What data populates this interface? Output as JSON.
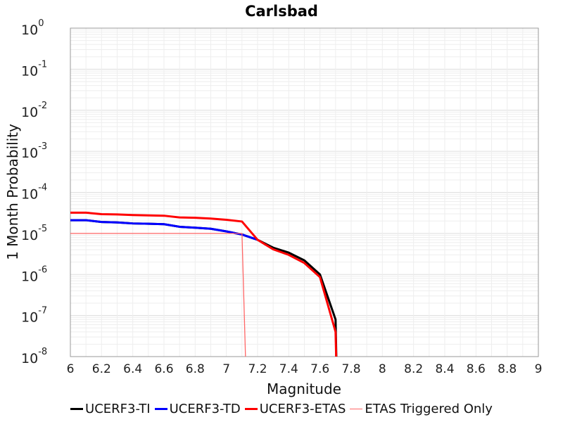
{
  "chart_data": {
    "type": "line",
    "title": "Carlsbad",
    "xlabel": "Magnitude",
    "ylabel": "1 Month Probability",
    "xlim": [
      6,
      9
    ],
    "ylim": [
      1e-08,
      1
    ],
    "yscale": "log",
    "grid": true,
    "legend_position": "bottom",
    "x_ticks": [
      "6",
      "6.2",
      "6.4",
      "6.6",
      "6.8",
      "7",
      "7.2",
      "7.4",
      "7.6",
      "7.8",
      "8",
      "8.2",
      "8.4",
      "8.6",
      "8.8",
      "9"
    ],
    "y_ticks": [
      {
        "base": "10",
        "exp": "0"
      },
      {
        "base": "10",
        "exp": "-1"
      },
      {
        "base": "10",
        "exp": "-2"
      },
      {
        "base": "10",
        "exp": "-3"
      },
      {
        "base": "10",
        "exp": "-4"
      },
      {
        "base": "10",
        "exp": "-5"
      },
      {
        "base": "10",
        "exp": "-6"
      },
      {
        "base": "10",
        "exp": "-7"
      },
      {
        "base": "10",
        "exp": "-8"
      }
    ],
    "series": [
      {
        "name": "UCERF3-TI",
        "color": "#000000",
        "width": 3,
        "x": [
          6.0,
          6.1,
          6.2,
          6.3,
          6.4,
          6.5,
          6.6,
          6.7,
          6.8,
          6.9,
          7.0,
          7.1,
          7.2,
          7.3,
          7.4,
          7.5,
          7.6,
          7.7,
          7.71
        ],
        "y": [
          2.1e-05,
          2.1e-05,
          1.9e-05,
          1.85e-05,
          1.75e-05,
          1.72e-05,
          1.68e-05,
          1.45e-05,
          1.38e-05,
          1.3e-05,
          1.12e-05,
          9.4e-06,
          7e-06,
          4.5e-06,
          3.4e-06,
          2.2e-06,
          1e-06,
          8e-08,
          1e-09
        ]
      },
      {
        "name": "UCERF3-TD",
        "color": "#0000ff",
        "width": 3,
        "x": [
          6.0,
          6.1,
          6.2,
          6.3,
          6.4,
          6.5,
          6.6,
          6.7,
          6.8,
          6.9,
          7.0,
          7.1,
          7.2
        ],
        "y": [
          2.1e-05,
          2.1e-05,
          1.9e-05,
          1.85e-05,
          1.75e-05,
          1.72e-05,
          1.68e-05,
          1.45e-05,
          1.38e-05,
          1.3e-05,
          1.12e-05,
          9.4e-06,
          7e-06
        ]
      },
      {
        "name": "UCERF3-ETAS",
        "color": "#ff0000",
        "width": 3,
        "x": [
          6.0,
          6.1,
          6.2,
          6.3,
          6.4,
          6.5,
          6.6,
          6.7,
          6.8,
          6.9,
          7.0,
          7.1,
          7.2,
          7.3,
          7.4,
          7.5,
          7.6,
          7.7,
          7.71
        ],
        "y": [
          3.2e-05,
          3.2e-05,
          2.95e-05,
          2.9e-05,
          2.8e-05,
          2.75e-05,
          2.7e-05,
          2.45e-05,
          2.4e-05,
          2.3e-05,
          2.15e-05,
          1.95e-05,
          7e-06,
          4.1e-06,
          3e-06,
          1.9e-06,
          8.6e-07,
          4e-08,
          1e-09
        ]
      },
      {
        "name": "ETAS Triggered Only",
        "color": "#ff6666",
        "width": 1.3,
        "x": [
          6.0,
          6.1,
          6.2,
          6.3,
          6.4,
          6.5,
          6.6,
          6.7,
          6.8,
          6.9,
          7.0,
          7.1,
          7.13
        ],
        "y": [
          1e-05,
          1e-05,
          1e-05,
          1e-05,
          1e-05,
          1e-05,
          1e-05,
          1e-05,
          1e-05,
          1e-05,
          1e-05,
          1e-05,
          1e-09
        ]
      }
    ]
  }
}
